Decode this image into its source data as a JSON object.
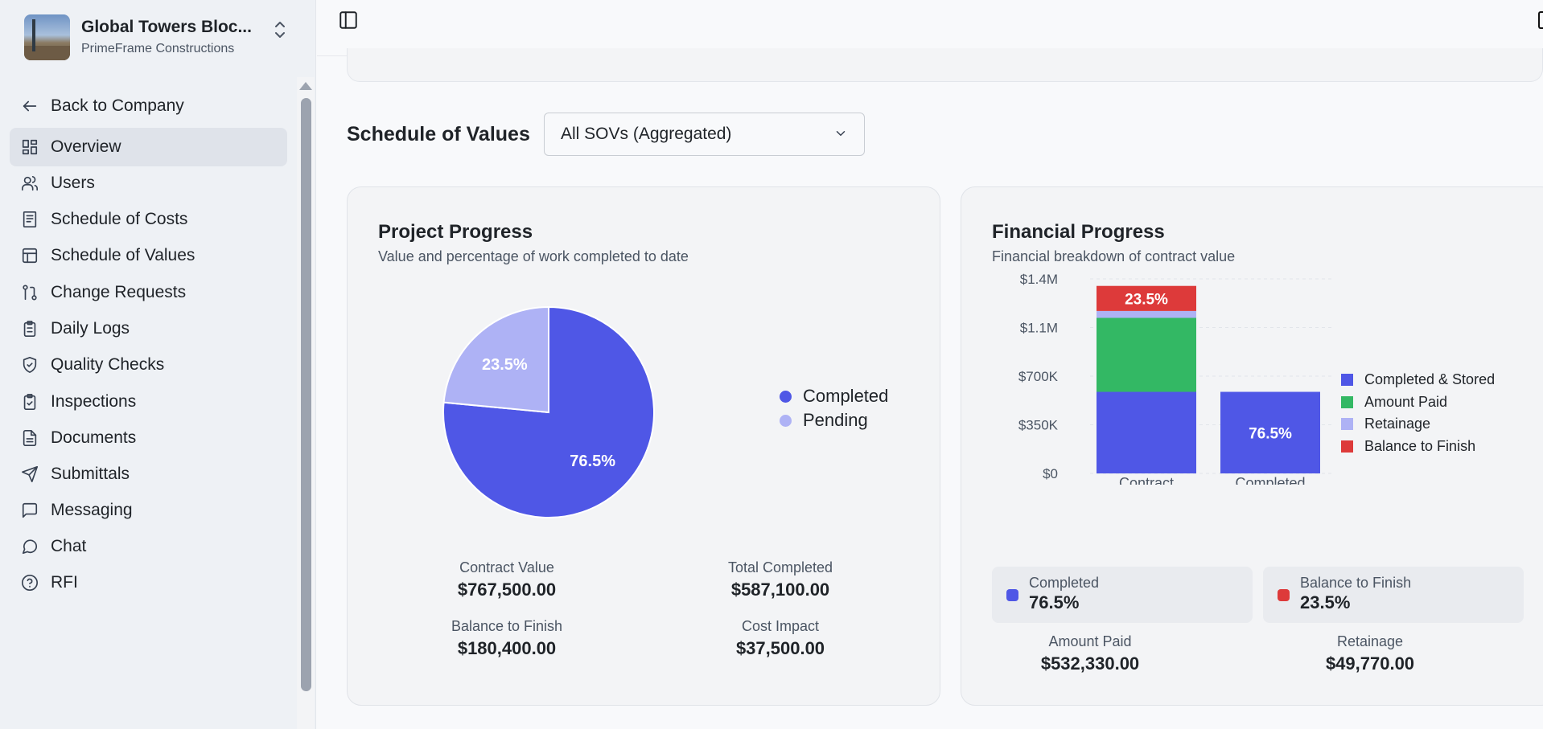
{
  "project": {
    "name": "Global Towers Bloc...",
    "company": "PrimeFrame Constructions"
  },
  "sidebar": {
    "back_label": "Back to Company",
    "items": [
      {
        "label": "Overview",
        "icon": "dashboard-icon",
        "active": true
      },
      {
        "label": "Users",
        "icon": "users-icon"
      },
      {
        "label": "Schedule of Costs",
        "icon": "receipt-icon"
      },
      {
        "label": "Schedule of Values",
        "icon": "table-icon"
      },
      {
        "label": "Change Requests",
        "icon": "git-pull-request-icon"
      },
      {
        "label": "Daily Logs",
        "icon": "clipboard-list-icon"
      },
      {
        "label": "Quality Checks",
        "icon": "shield-check-icon"
      },
      {
        "label": "Inspections",
        "icon": "clipboard-check-icon"
      },
      {
        "label": "Documents",
        "icon": "file-text-icon"
      },
      {
        "label": "Submittals",
        "icon": "send-icon"
      },
      {
        "label": "Messaging",
        "icon": "message-square-icon"
      },
      {
        "label": "Chat",
        "icon": "message-circle-icon"
      },
      {
        "label": "RFI",
        "icon": "help-circle-icon"
      }
    ]
  },
  "sov": {
    "title": "Schedule of Values",
    "selected": "All SOVs (Aggregated)"
  },
  "colors": {
    "completed": "#4f57e6",
    "pending": "#aeb2f5",
    "amount_paid": "#33b864",
    "retainage": "#aeb2f5",
    "balance": "#dd3a3a"
  },
  "project_progress": {
    "title": "Project Progress",
    "subtitle": "Value and percentage of work completed to date",
    "legend": [
      "Completed",
      "Pending"
    ],
    "stats": [
      {
        "label": "Contract Value",
        "value": "$767,500.00"
      },
      {
        "label": "Total Completed",
        "value": "$587,100.00"
      },
      {
        "label": "Balance to Finish",
        "value": "$180,400.00"
      },
      {
        "label": "Cost Impact",
        "value": "$37,500.00"
      }
    ]
  },
  "financial_progress": {
    "title": "Financial Progress",
    "subtitle": "Financial breakdown of contract value",
    "legend": [
      "Completed & Stored",
      "Amount Paid",
      "Retainage",
      "Balance to Finish"
    ],
    "badges": [
      {
        "label": "Completed",
        "value": "76.5%"
      },
      {
        "label": "Balance to Finish",
        "value": "23.5%"
      }
    ],
    "stats": [
      {
        "label": "Amount Paid",
        "value": "$532,330.00"
      },
      {
        "label": "Retainage",
        "value": "$49,770.00"
      }
    ]
  },
  "chart_data": [
    {
      "type": "pie",
      "categories": [
        "Completed",
        "Pending"
      ],
      "values": [
        76.5,
        23.5
      ],
      "labels": [
        "76.5%",
        "23.5%"
      ]
    },
    {
      "type": "bar",
      "stacked": true,
      "categories": [
        "Contract",
        "Completed"
      ],
      "yticks": [
        "$0",
        "$350K",
        "$700K",
        "$1.1M",
        "$1.4M"
      ],
      "ylim": [
        0,
        1400000
      ],
      "series": [
        {
          "name": "Completed & Stored",
          "values": [
            587100,
            587100
          ]
        },
        {
          "name": "Amount Paid",
          "values": [
            532330,
            0
          ]
        },
        {
          "name": "Retainage",
          "values": [
            49770,
            0
          ]
        },
        {
          "name": "Balance to Finish",
          "values": [
            180400,
            0
          ]
        }
      ],
      "data_labels": {
        "Contract": "23.5%",
        "Completed": "76.5%"
      }
    }
  ]
}
